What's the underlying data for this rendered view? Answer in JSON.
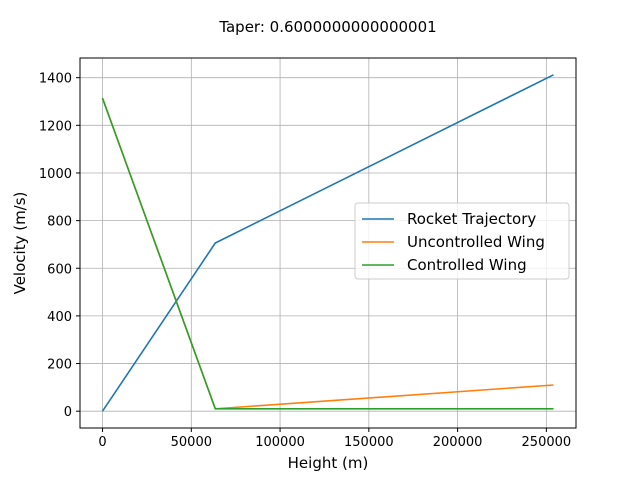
{
  "chart_data": {
    "type": "line",
    "title": "Taper: 0.6000000000000001",
    "xlabel": "Height (m)",
    "ylabel": "Velocity (m/s)",
    "xlim": [
      -12700,
      266700
    ],
    "ylim": [
      -70.6,
      1482.6
    ],
    "xticks": [
      0,
      50000,
      100000,
      150000,
      200000,
      250000
    ],
    "yticks": [
      0,
      200,
      400,
      600,
      800,
      1000,
      1200,
      1400
    ],
    "grid": true,
    "legend_position": "center-right",
    "series": [
      {
        "name": "Rocket Trajectory",
        "color": "#1f77b4",
        "x": [
          0,
          63500,
          254000
        ],
        "y": [
          0,
          706,
          1412
        ]
      },
      {
        "name": "Uncontrolled Wing",
        "color": "#ff7f0e",
        "x": [
          0,
          63500,
          254000
        ],
        "y": [
          1314,
          10,
          110
        ]
      },
      {
        "name": "Controlled Wing",
        "color": "#2ca02c",
        "x": [
          0,
          63500,
          254000
        ],
        "y": [
          1314,
          10,
          10
        ]
      }
    ]
  }
}
